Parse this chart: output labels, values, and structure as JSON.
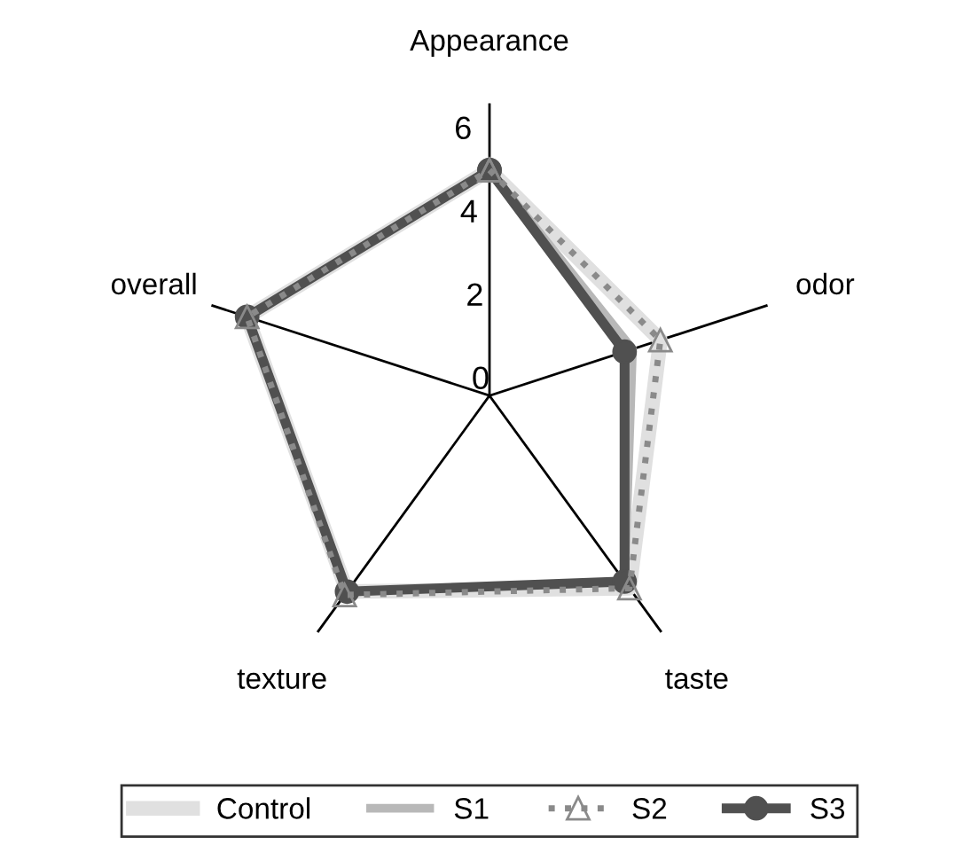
{
  "chart_data": {
    "type": "radar",
    "categories": [
      "Appearance",
      "odor",
      "taste",
      "texture",
      "overall"
    ],
    "ylim": [
      0,
      7
    ],
    "yticks": [
      0,
      2,
      4,
      6
    ],
    "grid": "x",
    "legend": "bottom",
    "series": [
      {
        "name": "Control",
        "color": "#e0e0e0",
        "values": [
          5.4,
          4.3,
          5.7,
          5.8,
          6.1
        ],
        "marker": "none",
        "line_style": "solid"
      },
      {
        "name": "S1",
        "color": "#b8b8b8",
        "values": [
          5.4,
          3.6,
          5.5,
          5.8,
          6.1
        ],
        "marker": "none",
        "line_style": "solid"
      },
      {
        "name": "S2",
        "color": "#8a8a8a",
        "values": [
          5.4,
          4.3,
          5.7,
          5.9,
          6.1
        ],
        "marker": "triangle",
        "line_style": "dotted"
      },
      {
        "name": "S3",
        "color": "#505050",
        "values": [
          5.4,
          3.4,
          5.5,
          5.8,
          6.1
        ],
        "marker": "circle",
        "line_style": "solid"
      }
    ]
  }
}
